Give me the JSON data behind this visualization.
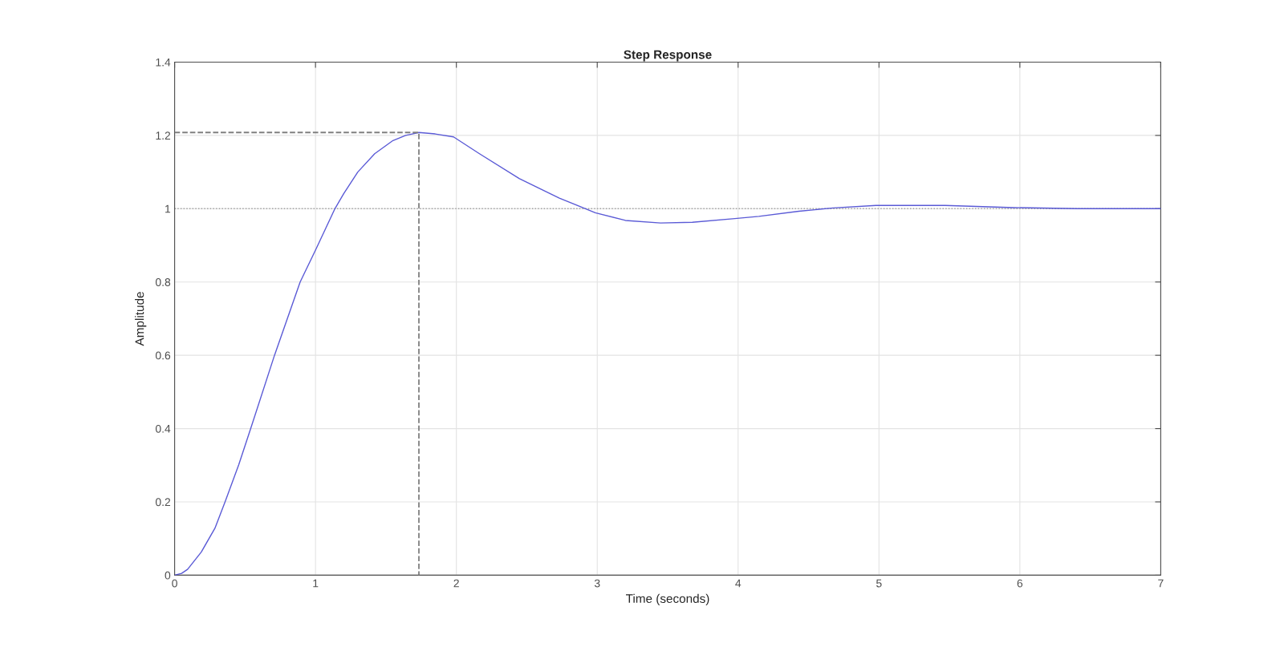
{
  "chart_data": {
    "type": "line",
    "title": "Step Response",
    "xlabel": "Time (seconds)",
    "ylabel": "Amplitude",
    "series": [
      {
        "color": "#5a5ad6",
        "line_style": "solid",
        "x": [
          0,
          0.05,
          0.092,
          0.189,
          0.286,
          0.358,
          0.455,
          0.54,
          0.709,
          0.891,
          1.0,
          1.138,
          1.2,
          1.3,
          1.42,
          1.55,
          1.64,
          1.734,
          1.85,
          1.98,
          2.164,
          2.448,
          2.731,
          2.986,
          3.2,
          3.449,
          3.675,
          3.977,
          4.147,
          4.43,
          4.674,
          4.978,
          5.47,
          5.96,
          6.41,
          7
        ],
        "values": [
          0,
          0.005,
          0.016,
          0.063,
          0.128,
          0.2,
          0.301,
          0.4,
          0.6,
          0.8,
          0.887,
          1.0,
          1.041,
          1.1,
          1.15,
          1.186,
          1.2,
          1.208,
          1.204,
          1.196,
          1.15,
          1.082,
          1.029,
          0.989,
          0.968,
          0.961,
          0.963,
          0.973,
          0.979,
          0.993,
          1.002,
          1.009,
          1.009,
          1.003,
          1.0,
          1.0
        ]
      },
      {
        "color": "#808080",
        "line_style": "dashed",
        "x": [
          0,
          1.734,
          1.734
        ],
        "values": [
          1.208,
          1.208,
          0
        ]
      }
    ],
    "ref_lines": [
      {
        "axis": "y",
        "value": 1,
        "color": "#a0a0a0",
        "line_style": "dotted"
      }
    ],
    "xlim": [
      0,
      7
    ],
    "ylim": [
      0,
      1.4
    ],
    "xticks": [
      0,
      1,
      2,
      3,
      4,
      5,
      6,
      7
    ],
    "yticks": [
      0,
      0.2,
      0.4,
      0.6,
      0.8,
      1,
      1.2,
      1.4
    ],
    "grid": true
  }
}
